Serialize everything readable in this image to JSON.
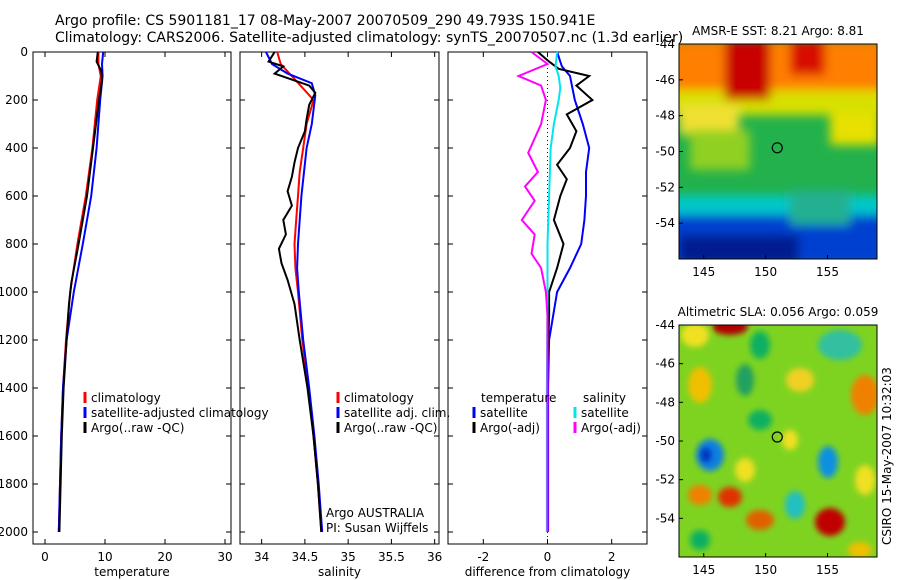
{
  "header": {
    "line1": "Argo profile: CS 5901181_17 08-May-2007 20070509_290 49.793S 150.941E",
    "line2": "Climatology: CARS2006. Satellite-adjusted climatology: synTS_20070507.nc (1.3d earlier)"
  },
  "side_label": "CSIRO 15-May-2007 10:32:03",
  "colors": {
    "climatology": "#ff0000",
    "satellite": "#0000ff",
    "argo": "#000000",
    "cyan": "#00e5ee",
    "magenta": "#ff00ff",
    "dotted": "#0000cc"
  },
  "chart_data": [
    {
      "type": "line",
      "id": "temperature",
      "xlabel": "temperature",
      "ylabel": "",
      "xlim": [
        -2,
        31
      ],
      "ylim": [
        2050,
        0
      ],
      "xticks": [
        0,
        10,
        20,
        30
      ],
      "xtick_labels": [
        "0",
        "10",
        "20",
        "30"
      ],
      "yticks": [
        0,
        200,
        400,
        600,
        800,
        1000,
        1200,
        1400,
        1600,
        1800,
        2000
      ],
      "ytick_labels": [
        "0",
        "200",
        "400",
        "600",
        "800",
        "1000",
        "1200",
        "1400",
        "1600",
        "1800",
        "2000"
      ],
      "legend": [
        "climatology",
        "satellite-adjusted climatology",
        "Argo(..raw -QC)"
      ],
      "series": [
        {
          "name": "climatology",
          "color": "#ff0000",
          "points": [
            [
              8.9,
              0
            ],
            [
              8.9,
              50
            ],
            [
              9.3,
              100
            ],
            [
              8.7,
              200
            ],
            [
              7.9,
              400
            ],
            [
              6.8,
              600
            ],
            [
              5.4,
              800
            ],
            [
              4.2,
              1000
            ],
            [
              3.5,
              1200
            ],
            [
              3.0,
              1400
            ],
            [
              2.7,
              1600
            ],
            [
              2.5,
              1800
            ],
            [
              2.3,
              2000
            ]
          ]
        },
        {
          "name": "satellite-adjusted climatology",
          "color": "#0000ff",
          "points": [
            [
              9.7,
              0
            ],
            [
              9.5,
              50
            ],
            [
              9.6,
              100
            ],
            [
              9.2,
              200
            ],
            [
              8.6,
              400
            ],
            [
              7.7,
              600
            ],
            [
              6.3,
              800
            ],
            [
              4.8,
              1000
            ],
            [
              3.6,
              1200
            ],
            [
              3.0,
              1400
            ],
            [
              2.7,
              1600
            ],
            [
              2.5,
              1800
            ],
            [
              2.3,
              2000
            ]
          ]
        },
        {
          "name": "Argo(..raw -QC)",
          "color": "#000000",
          "points": [
            [
              8.8,
              0
            ],
            [
              8.6,
              40
            ],
            [
              9.4,
              80
            ],
            [
              9.5,
              120
            ],
            [
              9.0,
              200
            ],
            [
              8.5,
              300
            ],
            [
              8.0,
              400
            ],
            [
              7.5,
              500
            ],
            [
              7.0,
              600
            ],
            [
              6.3,
              700
            ],
            [
              5.6,
              800
            ],
            [
              5.0,
              880
            ],
            [
              4.4,
              960
            ],
            [
              4.0,
              1050
            ],
            [
              3.6,
              1200
            ],
            [
              3.1,
              1400
            ],
            [
              2.8,
              1600
            ],
            [
              2.6,
              1800
            ],
            [
              2.4,
              2000
            ]
          ]
        }
      ]
    },
    {
      "type": "line",
      "id": "salinity",
      "xlabel": "salinity",
      "xlim": [
        33.75,
        36.05
      ],
      "ylim": [
        2050,
        0
      ],
      "xticks": [
        34,
        34.5,
        35,
        35.5,
        36
      ],
      "xtick_labels": [
        "34",
        "34.5",
        "35",
        "35.5",
        "36"
      ],
      "legend": [
        "climatology",
        "satellite adj. clim.",
        "Argo(..raw -QC)"
      ],
      "annotation": [
        "Argo AUSTRALIA",
        "PI: Susan Wijffels"
      ],
      "series": [
        {
          "name": "climatology",
          "color": "#ff0000",
          "points": [
            [
              34.18,
              0
            ],
            [
              34.22,
              50
            ],
            [
              34.4,
              120
            ],
            [
              34.6,
              200
            ],
            [
              34.52,
              300
            ],
            [
              34.48,
              400
            ],
            [
              34.44,
              500
            ],
            [
              34.42,
              600
            ],
            [
              34.4,
              700
            ],
            [
              34.38,
              800
            ],
            [
              34.39,
              900
            ],
            [
              34.42,
              1000
            ],
            [
              34.47,
              1200
            ],
            [
              34.54,
              1400
            ],
            [
              34.6,
              1600
            ],
            [
              34.65,
              1800
            ],
            [
              34.69,
              2000
            ]
          ]
        },
        {
          "name": "satellite adj. clim.",
          "color": "#0000ff",
          "points": [
            [
              34.05,
              0
            ],
            [
              34.12,
              50
            ],
            [
              34.3,
              90
            ],
            [
              34.58,
              130
            ],
            [
              34.62,
              180
            ],
            [
              34.58,
              300
            ],
            [
              34.52,
              400
            ],
            [
              34.46,
              600
            ],
            [
              34.42,
              800
            ],
            [
              34.41,
              900
            ],
            [
              34.43,
              1000
            ],
            [
              34.48,
              1200
            ],
            [
              34.55,
              1400
            ],
            [
              34.61,
              1600
            ],
            [
              34.66,
              1800
            ],
            [
              34.7,
              2000
            ]
          ]
        },
        {
          "name": "Argo(..raw -QC)",
          "color": "#000000",
          "points": [
            [
              34.15,
              0
            ],
            [
              34.08,
              40
            ],
            [
              34.25,
              60
            ],
            [
              34.15,
              90
            ],
            [
              34.55,
              140
            ],
            [
              34.62,
              170
            ],
            [
              34.55,
              220
            ],
            [
              34.52,
              280
            ],
            [
              34.5,
              330
            ],
            [
              34.42,
              400
            ],
            [
              34.38,
              460
            ],
            [
              34.35,
              520
            ],
            [
              34.3,
              580
            ],
            [
              34.35,
              640
            ],
            [
              34.25,
              700
            ],
            [
              34.28,
              760
            ],
            [
              34.2,
              820
            ],
            [
              34.23,
              880
            ],
            [
              34.3,
              950
            ],
            [
              34.38,
              1050
            ],
            [
              34.44,
              1200
            ],
            [
              34.53,
              1400
            ],
            [
              34.6,
              1600
            ],
            [
              34.65,
              1800
            ],
            [
              34.69,
              2000
            ]
          ]
        }
      ]
    },
    {
      "type": "line",
      "id": "difference",
      "xlabel": "difference from climatology",
      "xlim": [
        -3.1,
        3.1
      ],
      "ylim": [
        2050,
        0
      ],
      "xticks": [
        -2,
        0,
        2
      ],
      "xtick_labels": [
        "-2",
        "0",
        "2"
      ],
      "legend_title_left": "temperature",
      "legend_title_right": "salinity",
      "legend_left": [
        "satellite",
        "Argo(-adj)"
      ],
      "legend_right": [
        "satellite",
        "Argo(-adj)"
      ],
      "zero_line": 0,
      "series": [
        {
          "name": "temperature satellite",
          "color": "#0000ff",
          "points": [
            [
              0.3,
              0
            ],
            [
              0.45,
              60
            ],
            [
              0.7,
              100
            ],
            [
              0.85,
              200
            ],
            [
              1.1,
              300
            ],
            [
              1.3,
              400
            ],
            [
              1.2,
              500
            ],
            [
              1.2,
              600
            ],
            [
              1.15,
              700
            ],
            [
              1.05,
              800
            ],
            [
              0.7,
              900
            ],
            [
              0.3,
              1000
            ],
            [
              0.05,
              1200
            ],
            [
              0.02,
              1400
            ],
            [
              0.02,
              1800
            ],
            [
              0.02,
              2000
            ]
          ]
        },
        {
          "name": "temperature Argo(-adj)",
          "color": "#000000",
          "points": [
            [
              -0.3,
              0
            ],
            [
              0.05,
              40
            ],
            [
              0.35,
              70
            ],
            [
              1.3,
              100
            ],
            [
              0.9,
              140
            ],
            [
              1.4,
              200
            ],
            [
              0.6,
              260
            ],
            [
              0.9,
              330
            ],
            [
              0.7,
              400
            ],
            [
              0.3,
              470
            ],
            [
              0.6,
              530
            ],
            [
              0.4,
              600
            ],
            [
              0.2,
              700
            ],
            [
              0.5,
              800
            ],
            [
              0.3,
              900
            ],
            [
              0.05,
              1000
            ],
            [
              0.05,
              1100
            ],
            [
              0.0,
              1300
            ],
            [
              0.0,
              2000
            ]
          ]
        },
        {
          "name": "salinity satellite",
          "color": "#00e5ee",
          "points": [
            [
              0.3,
              0
            ],
            [
              0.25,
              60
            ],
            [
              0.35,
              100
            ],
            [
              0.4,
              150
            ],
            [
              0.35,
              200
            ],
            [
              0.2,
              300
            ],
            [
              0.1,
              400
            ],
            [
              0.05,
              600
            ],
            [
              0.0,
              800
            ],
            [
              0.0,
              1000
            ],
            [
              -0.02,
              1400
            ],
            [
              -0.02,
              2000
            ]
          ]
        },
        {
          "name": "salinity Argo(-adj)",
          "color": "#ff00ff",
          "points": [
            [
              -0.5,
              0
            ],
            [
              0.0,
              50
            ],
            [
              -0.9,
              100
            ],
            [
              -0.2,
              140
            ],
            [
              -0.05,
              200
            ],
            [
              -0.2,
              300
            ],
            [
              -0.6,
              420
            ],
            [
              -0.3,
              500
            ],
            [
              -0.7,
              560
            ],
            [
              -0.4,
              620
            ],
            [
              -0.8,
              700
            ],
            [
              -0.4,
              760
            ],
            [
              -0.5,
              840
            ],
            [
              -0.2,
              900
            ],
            [
              -0.05,
              1000
            ],
            [
              0.0,
              1100
            ],
            [
              0.0,
              2000
            ]
          ]
        }
      ]
    },
    {
      "type": "heatmap",
      "id": "sst",
      "title": "AMSR-E SST: 8.21  Argo: 8.81",
      "xlim": [
        143,
        159
      ],
      "ylim": [
        -56,
        -44
      ],
      "xticks": [
        145,
        150,
        155
      ],
      "xtick_labels": [
        "145",
        "150",
        "155"
      ],
      "yticks": [
        -44,
        -46,
        -48,
        -50,
        -52,
        -54
      ],
      "ytick_labels": [
        "-44",
        "-46",
        "-48",
        "-50",
        "-52",
        "-54"
      ],
      "marker": [
        150.941,
        -49.793
      ]
    },
    {
      "type": "heatmap",
      "id": "sla",
      "title": "Altimetric SLA: 0.056  Argo: 0.059",
      "xlim": [
        143,
        159
      ],
      "ylim": [
        -56,
        -44
      ],
      "xticks": [
        145,
        150,
        155
      ],
      "xtick_labels": [
        "145",
        "150",
        "155"
      ],
      "yticks": [
        -44,
        -46,
        -48,
        -50,
        -52,
        -54
      ],
      "ytick_labels": [
        "-44",
        "-46",
        "-48",
        "-50",
        "-52",
        "-54"
      ],
      "marker": [
        150.941,
        -49.793
      ]
    }
  ]
}
